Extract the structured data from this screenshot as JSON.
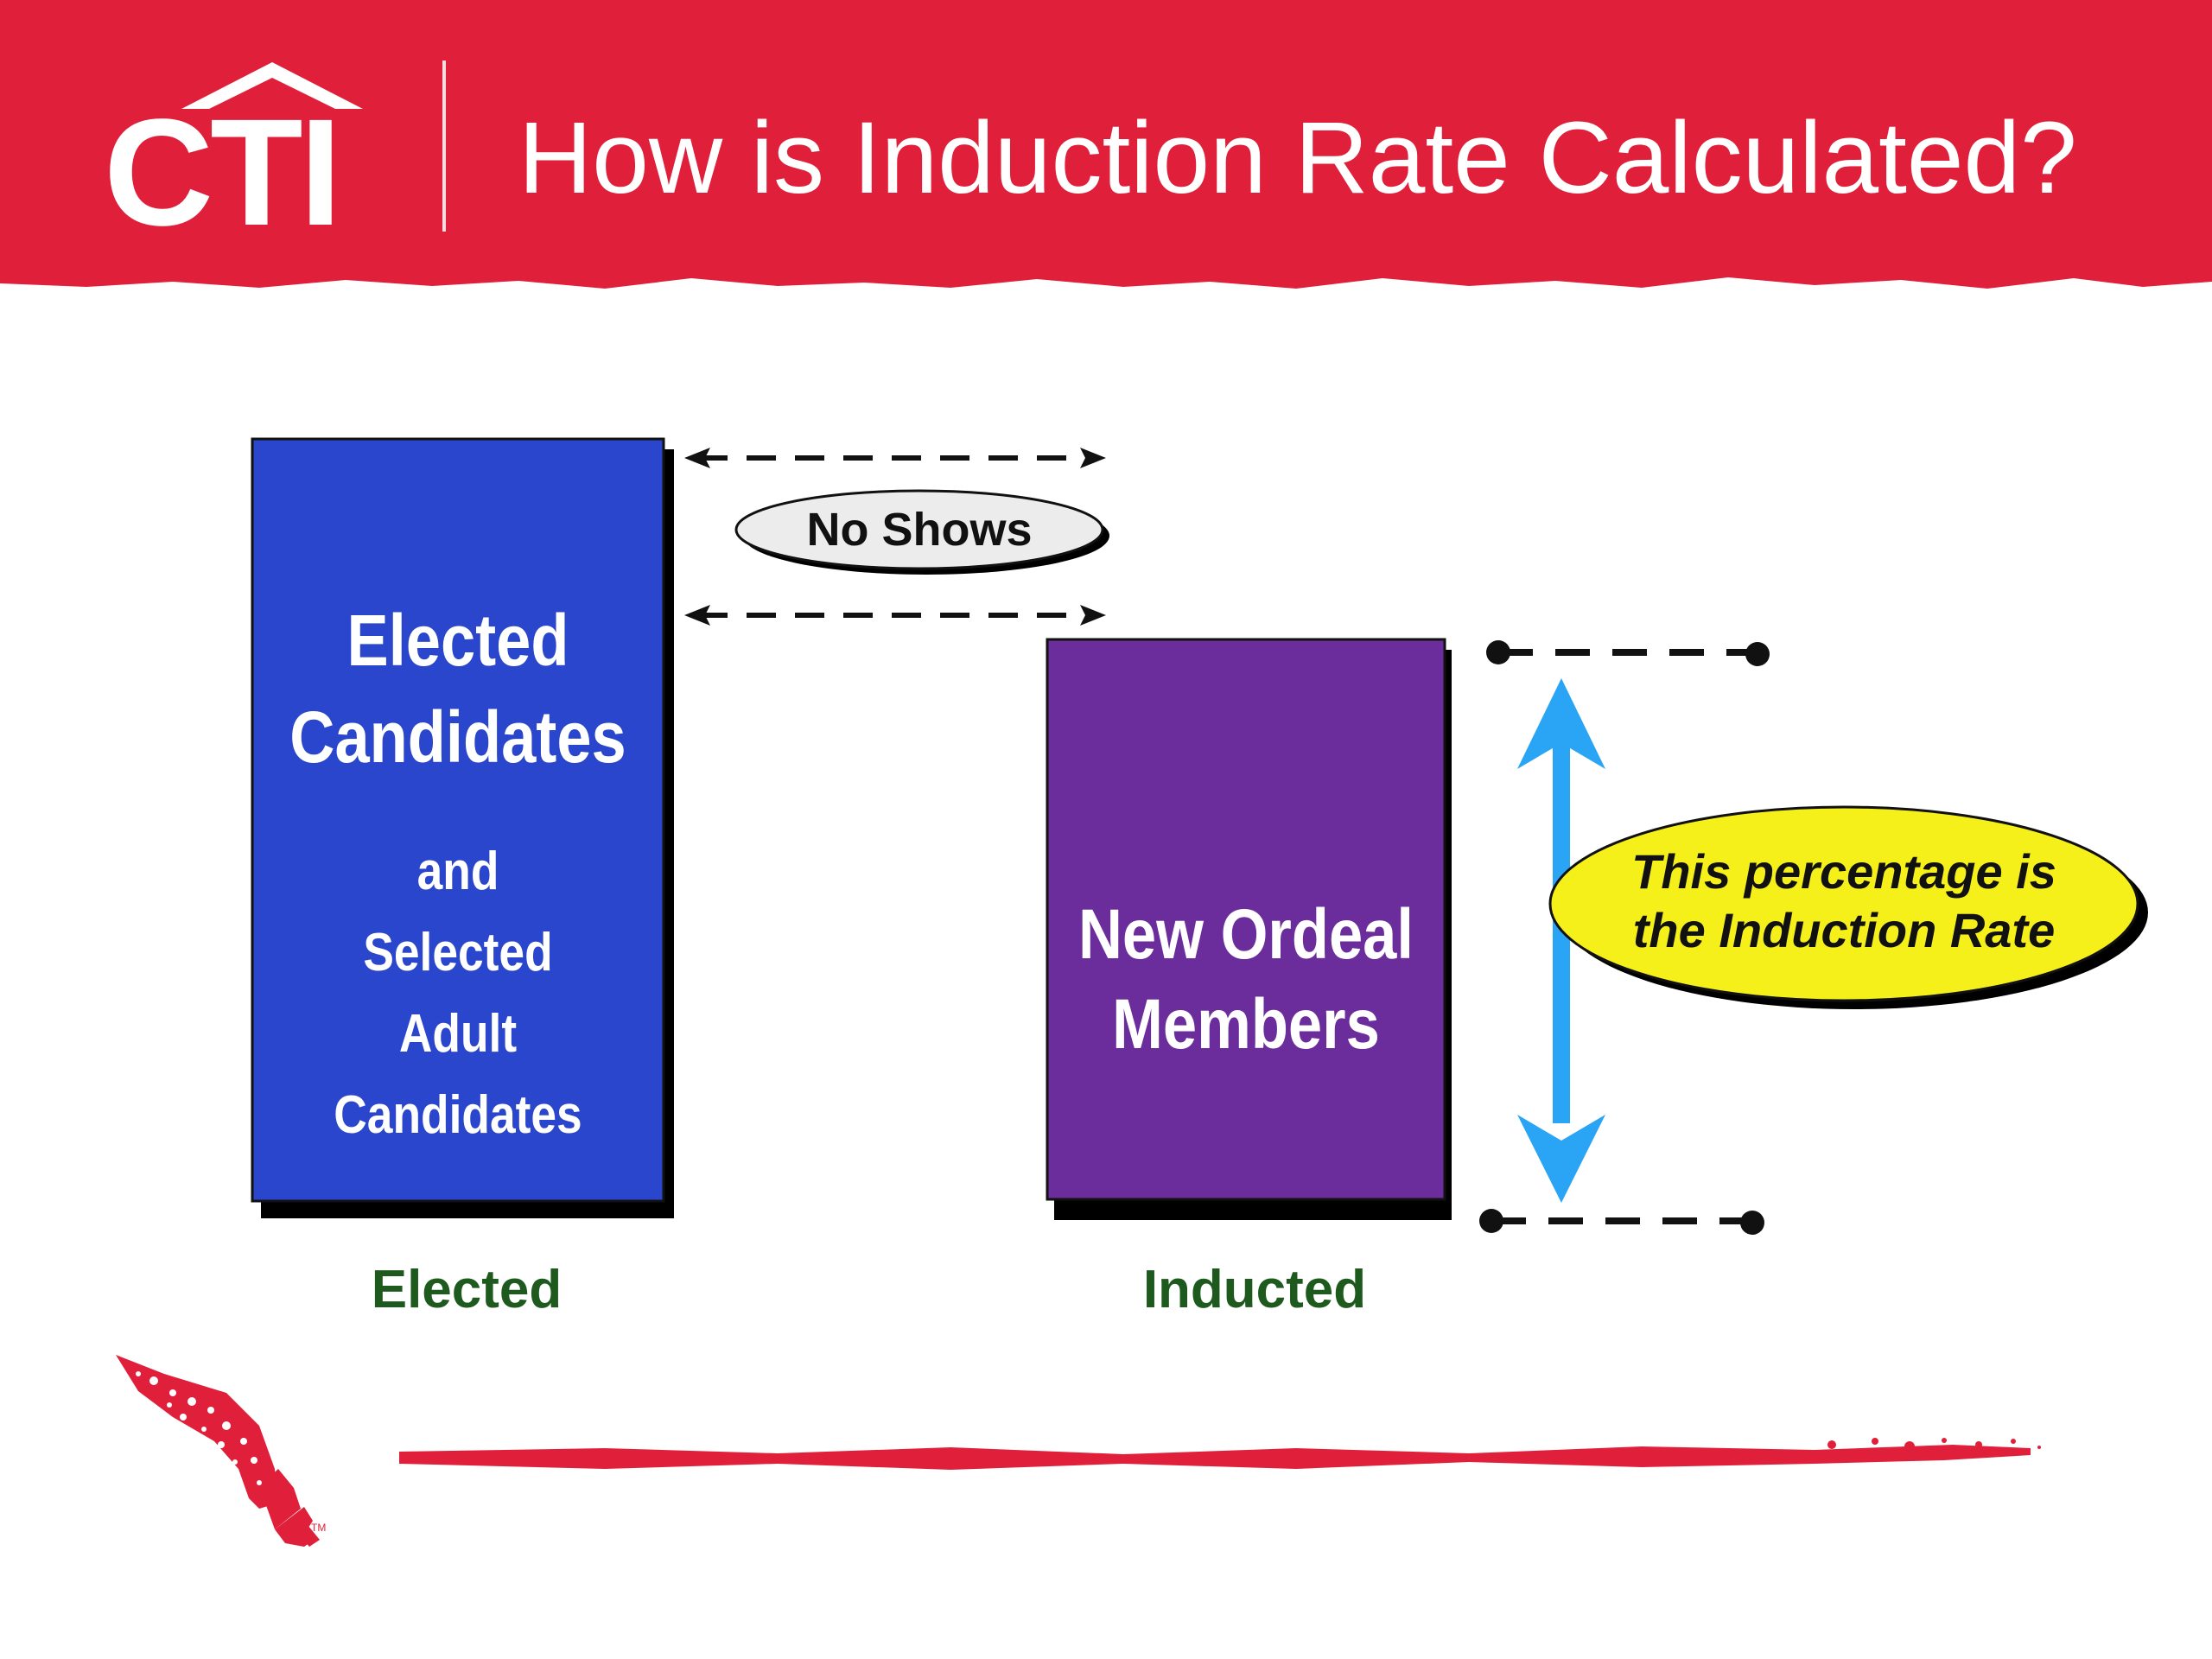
{
  "header": {
    "logo_text": "CTI",
    "title": "How is Induction Rate Calculated?"
  },
  "diagram": {
    "elected_box": {
      "line1": "Elected",
      "line2": "Candidates",
      "line3": "and",
      "line4": "Selected",
      "line5": "Adult",
      "line6": "Candidates",
      "color": "#2a46cc"
    },
    "inducted_box": {
      "line1": "New Ordeal",
      "line2": "Members",
      "color": "#6b2c9c"
    },
    "no_shows_label": "No Shows",
    "rate_callout": {
      "line1": "This percentage is",
      "line2": "the Induction Rate",
      "color": "#f5f01a"
    },
    "arrow_color": "#2aa4f4",
    "elected_label": "Elected",
    "inducted_label": "Inducted"
  },
  "footer": {
    "arrowhead_icon": "arrowhead-logo-icon",
    "trademark": "TM"
  },
  "colors": {
    "brand_red": "#e0203a",
    "label_green": "#1e5a1e"
  }
}
